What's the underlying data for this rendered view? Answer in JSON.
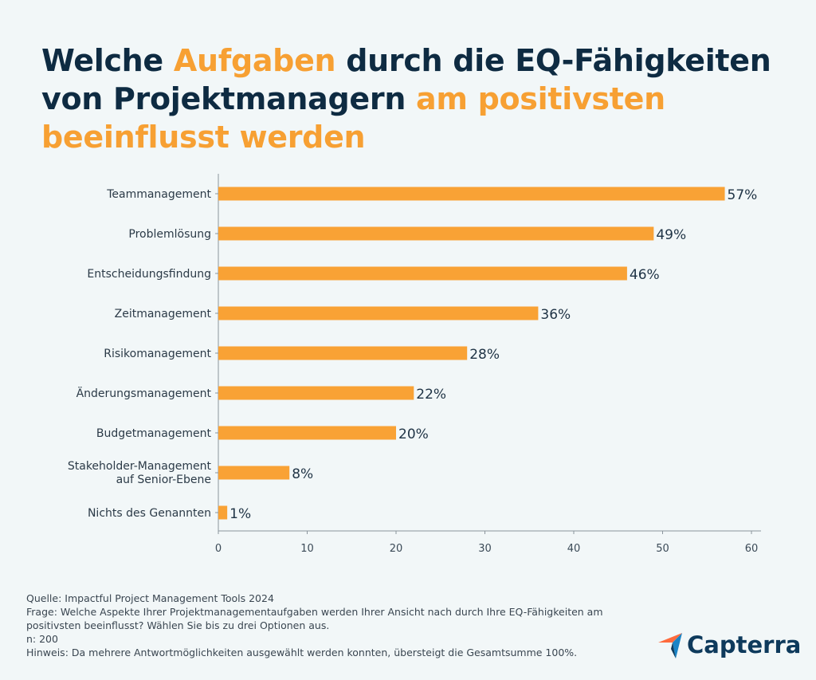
{
  "title": {
    "part1": "Welche ",
    "part2": "Aufgaben",
    "part3": " durch die EQ-Fähigkeiten von Projektmanagern ",
    "part4": "am positivsten beeinflusst werden"
  },
  "colors": {
    "title": "#0e2b42",
    "accent": "#f7a033",
    "bar": "#f9a235",
    "background": "#f2f7f8"
  },
  "chart_data": {
    "type": "bar",
    "orientation": "horizontal",
    "categories": [
      "Teammanagement",
      "Problemlösung",
      "Entscheidungsfindung",
      "Zeitmanagement",
      "Risikomanagement",
      "Änderungsmanagement",
      "Budgetmanagement",
      "Stakeholder-Management auf Senior-Ebene",
      "Nichts des Genannten"
    ],
    "values": [
      57,
      49,
      46,
      36,
      28,
      22,
      20,
      8,
      1
    ],
    "data_labels": [
      "57%",
      "49%",
      "46%",
      "36%",
      "28%",
      "22%",
      "20%",
      "8%",
      "1%"
    ],
    "xlim": [
      0,
      60
    ],
    "xticks": [
      "0",
      "10",
      "20",
      "30",
      "40",
      "50",
      "60"
    ],
    "grid": false
  },
  "footer": {
    "source": "Quelle: Impactful Project Management Tools 2024",
    "question": "Frage: Welche Aspekte Ihrer Projektmanagementaufgaben werden Ihrer Ansicht nach durch Ihre EQ-Fähigkeiten am positivsten beeinflusst? Wählen Sie bis zu drei Optionen aus.",
    "n": "n: 200",
    "note": "Hinweis: Da mehrere Antwortmöglichkeiten ausgewählt werden konnten, übersteigt die Gesamtsumme 100%."
  },
  "logo": {
    "text": "Capterra",
    "icon": "capterra-arrow-icon"
  }
}
